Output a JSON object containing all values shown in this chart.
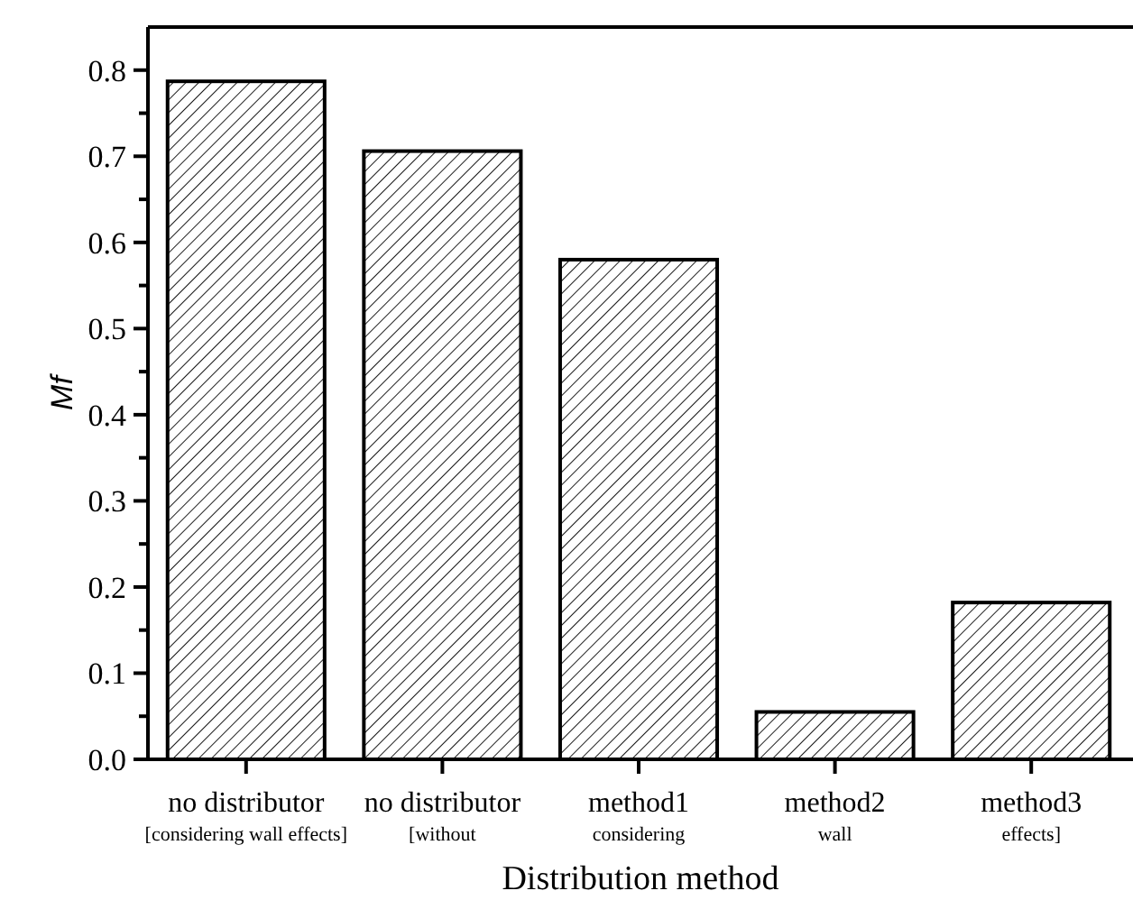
{
  "chart_data": {
    "type": "bar",
    "xlabel": "Distribution method",
    "ylabel": "Mf",
    "categories": [
      "no distributor\n[considering wall effects]",
      "no distributor\n[without",
      "method1\nconsidering",
      "method2\nwall",
      "method3\neffects]"
    ],
    "values": [
      0.787,
      0.706,
      0.58,
      0.055,
      0.182
    ],
    "color": "#000000",
    "ylim": [
      0,
      0.85
    ],
    "yticks": [
      {
        "value": 0,
        "label": "0.0"
      },
      {
        "value": 0.05,
        "label": null
      },
      {
        "value": 0.1,
        "label": "0.1"
      },
      {
        "value": 0.15,
        "label": null
      },
      {
        "value": 0.2,
        "label": "0.2"
      },
      {
        "value": 0.25,
        "label": null
      },
      {
        "value": 0.3,
        "label": "0.3"
      },
      {
        "value": 0.35,
        "label": null
      },
      {
        "value": 0.4,
        "label": "0.4"
      },
      {
        "value": 0.45,
        "label": null
      },
      {
        "value": 0.5,
        "label": "0.5"
      },
      {
        "value": 0.55,
        "label": null
      },
      {
        "value": 0.6,
        "label": "0.6"
      },
      {
        "value": 0.65,
        "label": null
      },
      {
        "value": 0.7,
        "label": "0.7"
      },
      {
        "value": 0.75,
        "label": null
      },
      {
        "value": 0.8,
        "label": "0.8"
      }
    ]
  }
}
